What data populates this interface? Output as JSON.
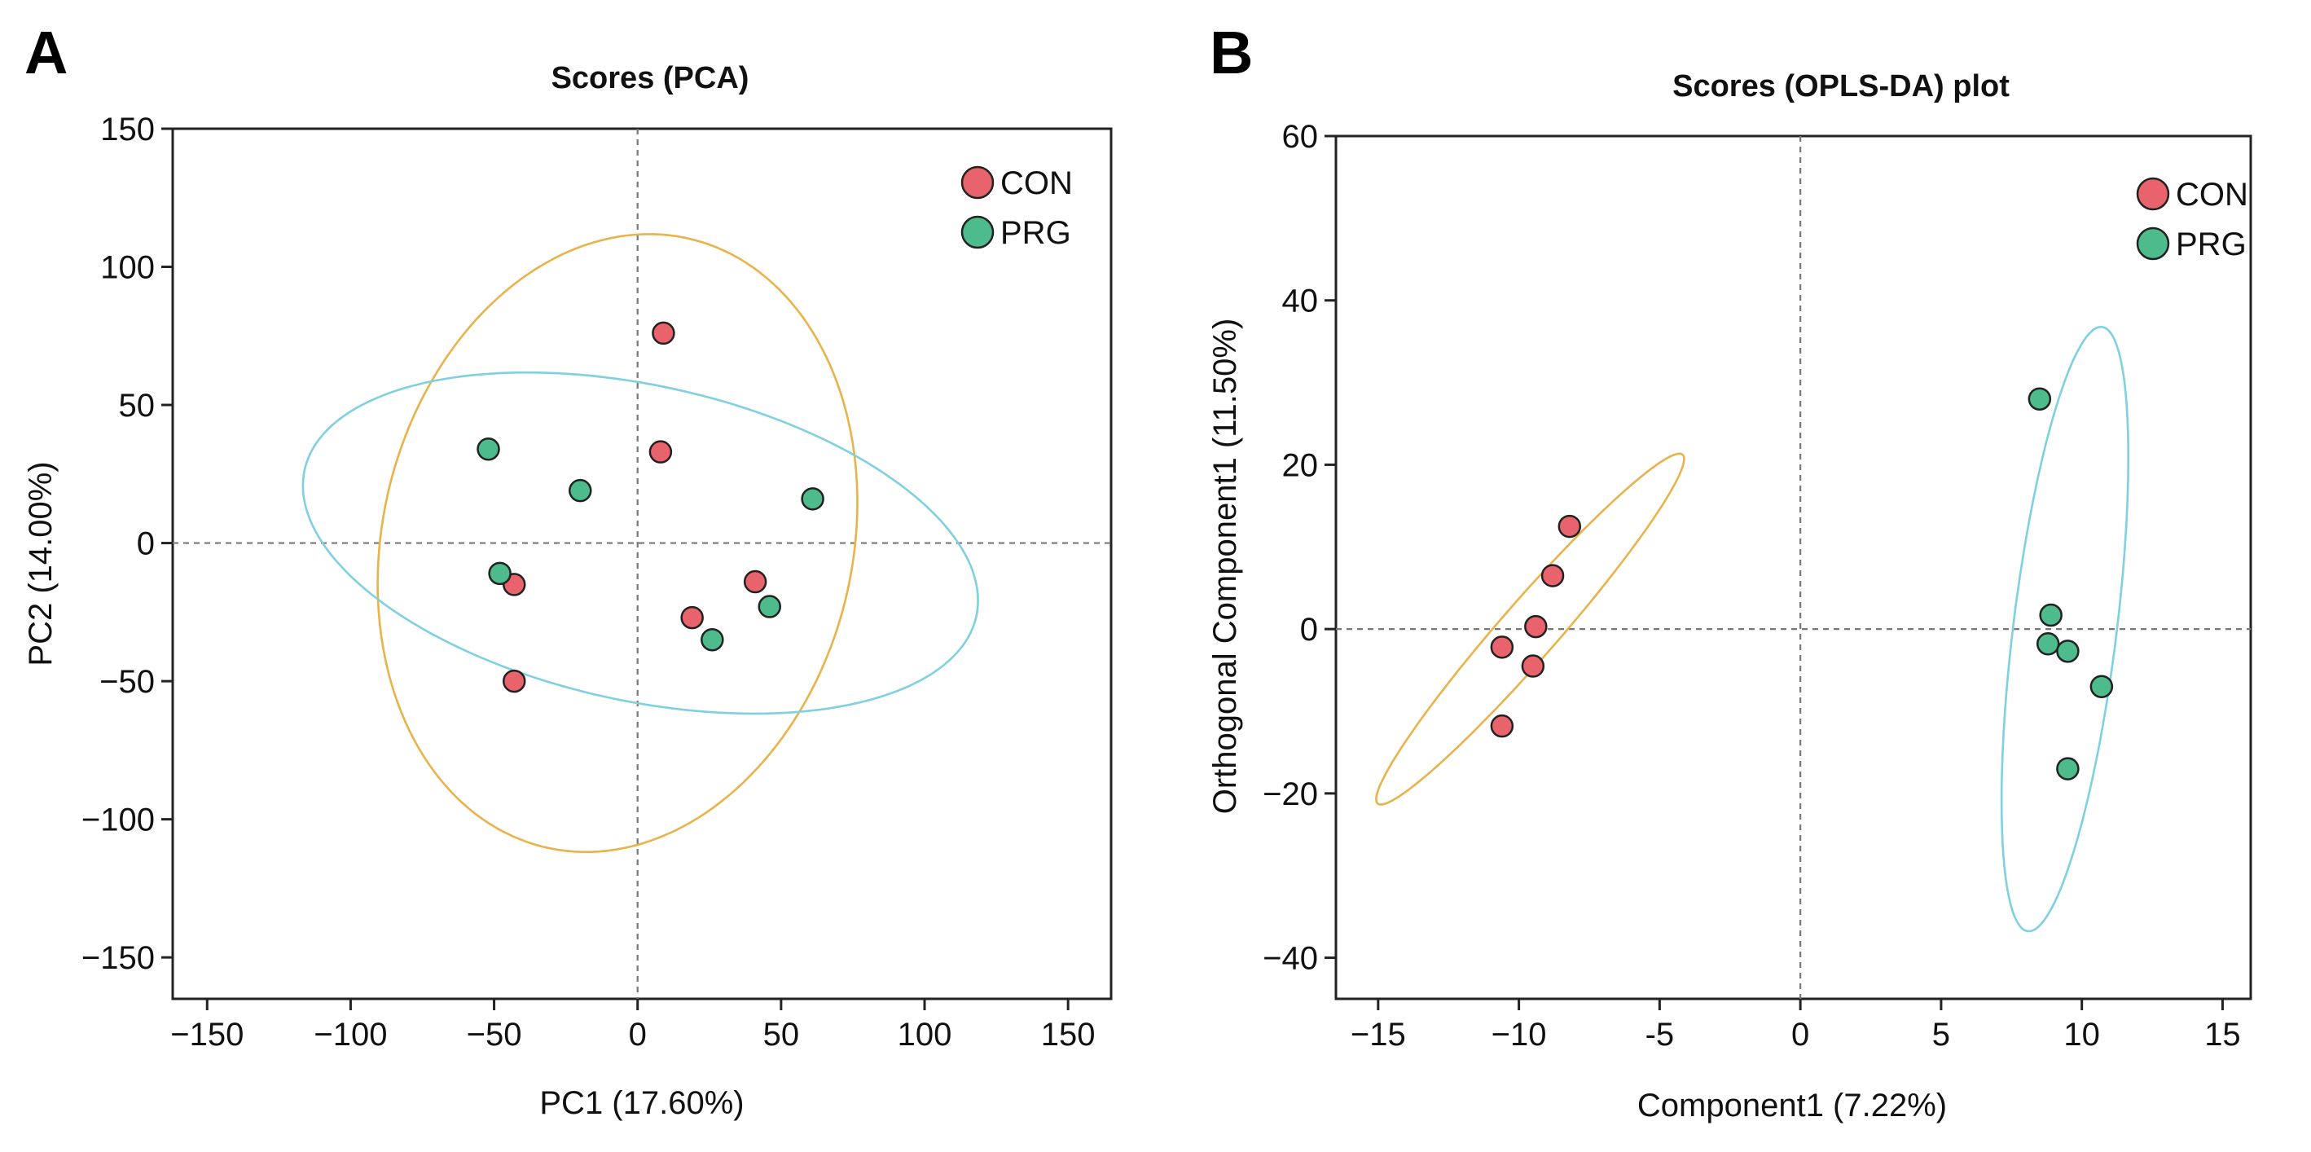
{
  "panels": [
    {
      "letter": "A"
    },
    {
      "letter": "B"
    }
  ],
  "chart_data": [
    {
      "type": "scatter",
      "title": "Scores (PCA)",
      "xlabel": "PC1 (17.60%)",
      "ylabel": "PC2 (14.00%)",
      "xlim": [
        -162,
        165
      ],
      "ylim": [
        -165,
        150
      ],
      "xticks": [
        -150,
        -100,
        -50,
        0,
        50,
        100,
        150
      ],
      "yticks": [
        -150,
        -100,
        -50,
        0,
        50,
        100,
        150
      ],
      "xtick_labels": [
        "−150",
        "−100",
        "−50",
        "0",
        "50",
        "100",
        "150"
      ],
      "ytick_labels": [
        "−150",
        "−100",
        "−50",
        "0",
        "50",
        "100",
        "150"
      ],
      "reference_lines": {
        "x": 0,
        "y": 0
      },
      "legend": {
        "position": "top-right",
        "entries": [
          "CON",
          "PRG"
        ]
      },
      "series": [
        {
          "name": "CON",
          "color": "#e8636b",
          "points": [
            [
              9,
              76
            ],
            [
              8,
              33
            ],
            [
              -43,
              -15
            ],
            [
              -43,
              -50
            ],
            [
              19,
              -27
            ],
            [
              41,
              -14
            ]
          ]
        },
        {
          "name": "PRG",
          "color": "#4dbb8c",
          "points": [
            [
              -52,
              34
            ],
            [
              -20,
              19
            ],
            [
              -48,
              -11
            ],
            [
              61,
              16
            ],
            [
              46,
              -23
            ],
            [
              26,
              -35
            ]
          ]
        }
      ],
      "ellipses": [
        {
          "group": "CON",
          "color": "#e8b34a",
          "center": [
            -7,
            0
          ],
          "semi_axes": [
            82,
            113
          ],
          "rotation_deg": -12
        },
        {
          "group": "PRG",
          "color": "#7fd0e0",
          "center": [
            1,
            0
          ],
          "semi_axes": [
            120,
            57
          ],
          "rotation_deg": -13
        }
      ]
    },
    {
      "type": "scatter",
      "title": "Scores (OPLS-DA) plot",
      "xlabel": "Component1 (7.22%)",
      "ylabel": "Orthogonal Component1 (11.50%)",
      "xlim": [
        -16.5,
        16
      ],
      "ylim": [
        -45,
        60
      ],
      "xticks": [
        -15,
        -10,
        -5,
        0,
        5,
        10,
        15
      ],
      "yticks": [
        -40,
        -20,
        0,
        20,
        40,
        60
      ],
      "xtick_labels": [
        "−15",
        "−10",
        "-5",
        "0",
        "5",
        "10",
        "15"
      ],
      "ytick_labels": [
        "−40",
        "−20",
        "0",
        "20",
        "40",
        "60"
      ],
      "reference_lines": {
        "x": 0,
        "y": 0
      },
      "legend": {
        "position": "top-right",
        "entries": [
          "CON",
          "PRG"
        ]
      },
      "series": [
        {
          "name": "CON",
          "color": "#e8636b",
          "points": [
            [
              -8.2,
              12.5
            ],
            [
              -8.8,
              6.5
            ],
            [
              -9.4,
              0.3
            ],
            [
              -10.6,
              -2.2
            ],
            [
              -9.5,
              -4.5
            ],
            [
              -10.6,
              -11.8
            ]
          ]
        },
        {
          "name": "PRG",
          "color": "#4dbb8c",
          "points": [
            [
              8.5,
              28
            ],
            [
              8.9,
              1.7
            ],
            [
              8.8,
              -1.8
            ],
            [
              9.5,
              -2.7
            ],
            [
              10.7,
              -7
            ],
            [
              9.5,
              -17
            ]
          ]
        }
      ],
      "ellipses": [
        {
          "group": "CON",
          "color": "#e8b34a",
          "center": [
            -9.6,
            0
          ],
          "semi_axes": [
            22,
            1.3
          ],
          "rotation_deg": 76
        },
        {
          "group": "PRG",
          "color": "#7fd0e0",
          "center": [
            9.4,
            0
          ],
          "semi_axes": [
            36.8,
            1.85
          ],
          "rotation_deg": 88
        }
      ]
    }
  ]
}
